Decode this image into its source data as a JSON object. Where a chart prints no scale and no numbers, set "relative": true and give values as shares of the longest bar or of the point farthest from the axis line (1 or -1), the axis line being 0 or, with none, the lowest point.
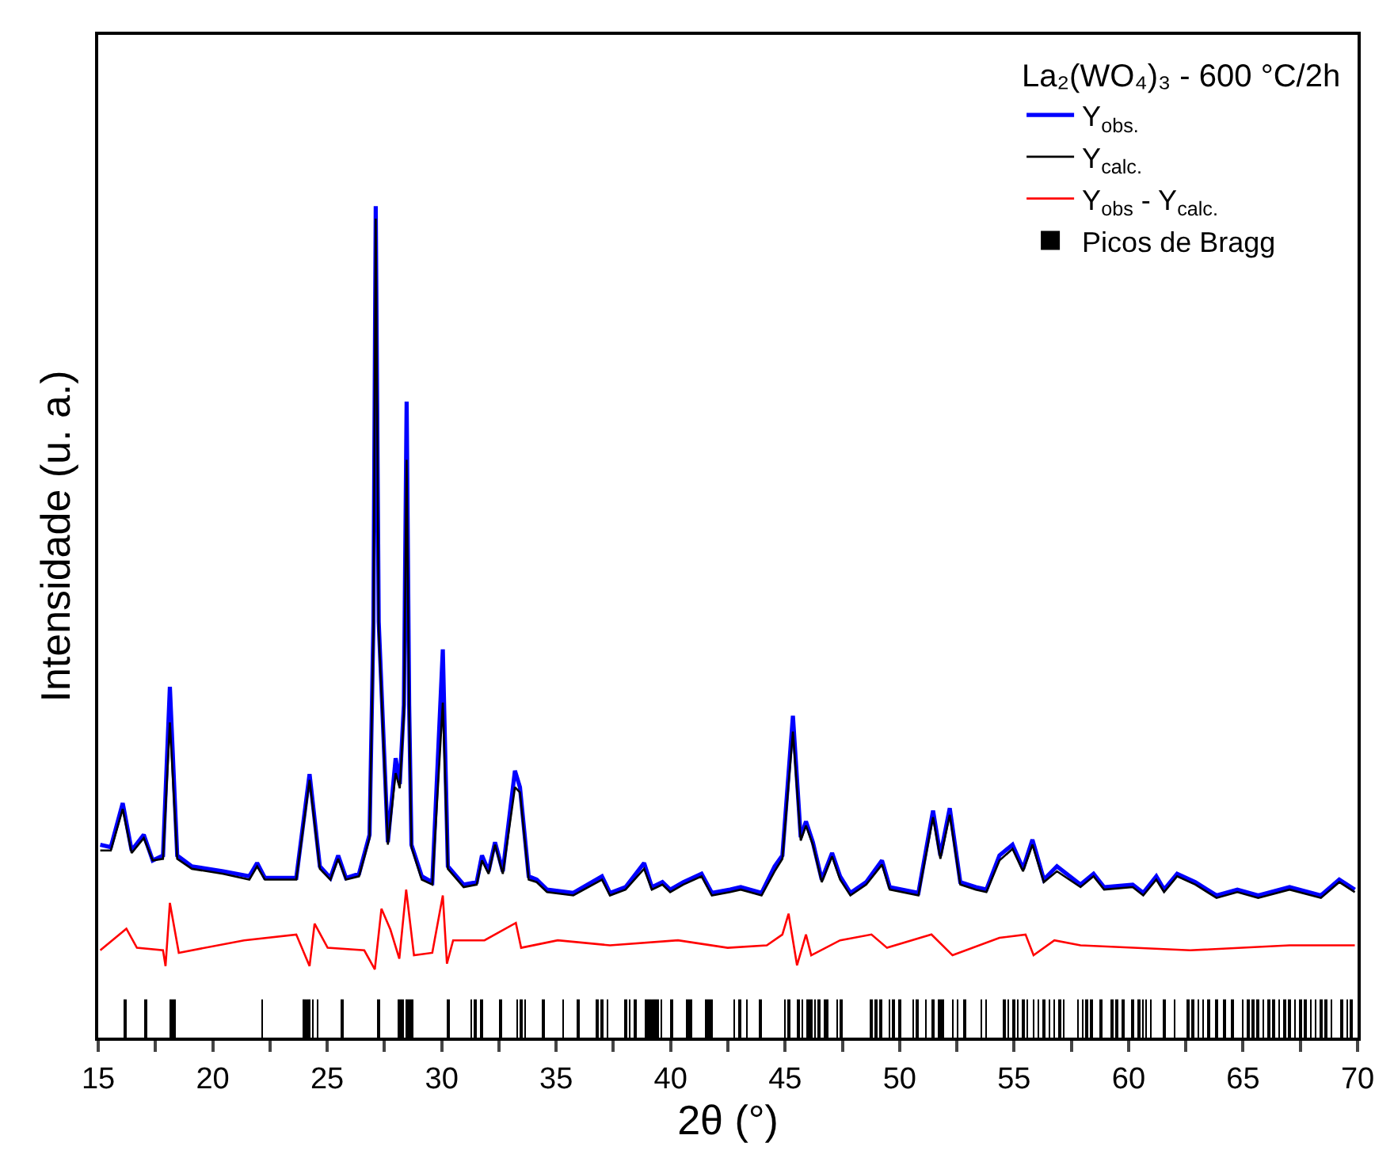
{
  "chart_data": {
    "type": "line",
    "relative": true,
    "xlabel": "2θ (°)",
    "ylabel": "Intensidade (u. a.)",
    "legend_title": "La₂(WO₄)₃ - 600 °C/2h",
    "legend": "top right",
    "tick_labels": "x",
    "xlim": [
      15,
      70
    ],
    "xticks": [
      15,
      {
        "value": 17.5,
        "label": null
      },
      20,
      {
        "value": 22.5,
        "label": null
      },
      25,
      {
        "value": 27.5,
        "label": null
      },
      30,
      {
        "value": 32.5,
        "label": null
      },
      35,
      {
        "value": 37.5,
        "label": null
      },
      40,
      {
        "value": 42.5,
        "label": null
      },
      45,
      {
        "value": 47.5,
        "label": null
      },
      50,
      {
        "value": 52.5,
        "label": null
      },
      55,
      {
        "value": 57.5,
        "label": null
      },
      60,
      {
        "value": 62.5,
        "label": null
      },
      65,
      {
        "value": 67.5,
        "label": null
      },
      70
    ],
    "series": [
      {
        "name": "Y$_{obs.}$",
        "color": "#0000ff",
        "x": [
          15.09,
          15.55,
          16.07,
          16.46,
          16.99,
          17.38,
          17.83,
          18.13,
          18.45,
          19.09,
          20.46,
          21.6,
          21.94,
          22.28,
          23.65,
          24.23,
          24.68,
          25.14,
          25.48,
          25.82,
          26.39,
          26.85,
          27.02,
          27.12,
          27.25,
          27.65,
          27.99,
          28.17,
          28.35,
          28.47,
          28.58,
          28.68,
          29.13,
          29.59,
          30.05,
          30.27,
          30.96,
          31.53,
          31.76,
          32.05,
          32.33,
          32.67,
          33.2,
          33.42,
          33.8,
          34.15,
          34.6,
          35.75,
          37.0,
          37.35,
          38.03,
          38.84,
          39.18,
          39.64,
          39.98,
          40.55,
          41.35,
          41.8,
          42.6,
          43.06,
          43.97,
          44.54,
          44.88,
          45.34,
          45.68,
          45.91,
          46.21,
          46.6,
          47.05,
          47.4,
          47.85,
          48.54,
          49.23,
          49.57,
          50.82,
          51.46,
          51.78,
          52.19,
          52.65,
          53.33,
          53.79,
          54.36,
          54.93,
          55.39,
          55.8,
          56.3,
          56.87,
          57.9,
          58.47,
          58.93,
          60.18,
          60.64,
          61.21,
          61.55,
          62.12,
          62.92,
          63.84,
          64.75,
          65.66,
          67.03,
          68.4,
          69.2,
          69.88
        ],
        "values": [
          0.232,
          0.229,
          0.282,
          0.225,
          0.244,
          0.213,
          0.219,
          0.422,
          0.219,
          0.206,
          0.2,
          0.194,
          0.21,
          0.192,
          0.192,
          0.317,
          0.206,
          0.192,
          0.219,
          0.192,
          0.197,
          0.244,
          0.5,
          1.0,
          0.5,
          0.235,
          0.336,
          0.305,
          0.4,
          0.765,
          0.4,
          0.232,
          0.194,
          0.187,
          0.467,
          0.206,
          0.184,
          0.187,
          0.219,
          0.2,
          0.235,
          0.2,
          0.321,
          0.301,
          0.194,
          0.19,
          0.178,
          0.174,
          0.194,
          0.174,
          0.181,
          0.21,
          0.181,
          0.187,
          0.178,
          0.187,
          0.197,
          0.174,
          0.178,
          0.181,
          0.174,
          0.206,
          0.219,
          0.387,
          0.241,
          0.26,
          0.235,
          0.19,
          0.222,
          0.194,
          0.174,
          0.187,
          0.213,
          0.181,
          0.174,
          0.273,
          0.219,
          0.276,
          0.187,
          0.181,
          0.178,
          0.219,
          0.232,
          0.203,
          0.238,
          0.19,
          0.206,
          0.184,
          0.197,
          0.181,
          0.184,
          0.174,
          0.194,
          0.178,
          0.197,
          0.187,
          0.171,
          0.178,
          0.171,
          0.181,
          0.171,
          0.19,
          0.178
        ]
      },
      {
        "name": "Y$_{calc.}$",
        "color": "#000000",
        "x": [
          15.09,
          15.55,
          16.07,
          16.46,
          16.99,
          17.38,
          17.83,
          18.13,
          18.45,
          19.09,
          20.46,
          21.6,
          21.94,
          22.28,
          23.65,
          24.23,
          24.68,
          25.14,
          25.48,
          25.82,
          26.39,
          26.85,
          27.02,
          27.12,
          27.25,
          27.65,
          27.99,
          28.17,
          28.35,
          28.47,
          28.58,
          28.68,
          29.13,
          29.59,
          30.05,
          30.27,
          30.96,
          31.53,
          31.76,
          32.05,
          32.33,
          32.67,
          33.2,
          33.42,
          33.8,
          34.15,
          34.6,
          35.75,
          37.0,
          37.35,
          38.03,
          38.84,
          39.18,
          39.64,
          39.98,
          40.55,
          41.35,
          41.8,
          42.6,
          43.06,
          43.97,
          44.54,
          44.88,
          45.34,
          45.68,
          45.91,
          46.21,
          46.6,
          47.05,
          47.4,
          47.85,
          48.54,
          49.23,
          49.57,
          50.82,
          51.46,
          51.78,
          52.19,
          52.65,
          53.33,
          53.79,
          54.36,
          54.93,
          55.39,
          55.8,
          56.3,
          56.87,
          57.9,
          58.47,
          58.93,
          60.18,
          60.64,
          61.21,
          61.55,
          62.12,
          62.92,
          63.84,
          64.75,
          65.66,
          67.03,
          68.4,
          69.2,
          69.88
        ],
        "values": [
          0.225,
          0.225,
          0.275,
          0.222,
          0.24,
          0.213,
          0.215,
          0.379,
          0.215,
          0.203,
          0.197,
          0.19,
          0.206,
          0.19,
          0.19,
          0.31,
          0.203,
          0.19,
          0.215,
          0.19,
          0.194,
          0.24,
          0.49,
          0.985,
          0.49,
          0.232,
          0.318,
          0.3,
          0.39,
          0.695,
          0.39,
          0.229,
          0.19,
          0.184,
          0.403,
          0.203,
          0.181,
          0.184,
          0.213,
          0.197,
          0.232,
          0.197,
          0.301,
          0.295,
          0.19,
          0.187,
          0.175,
          0.171,
          0.19,
          0.171,
          0.178,
          0.203,
          0.178,
          0.184,
          0.175,
          0.184,
          0.194,
          0.171,
          0.175,
          0.178,
          0.171,
          0.2,
          0.215,
          0.368,
          0.237,
          0.255,
          0.232,
          0.187,
          0.218,
          0.19,
          0.171,
          0.184,
          0.208,
          0.178,
          0.171,
          0.265,
          0.215,
          0.268,
          0.184,
          0.178,
          0.175,
          0.213,
          0.227,
          0.2,
          0.232,
          0.187,
          0.2,
          0.181,
          0.194,
          0.178,
          0.181,
          0.171,
          0.19,
          0.175,
          0.194,
          0.184,
          0.168,
          0.175,
          0.168,
          0.178,
          0.168,
          0.187,
          0.175
        ]
      },
      {
        "name": "Y$_{obs}$ - Y$_{calc.}$",
        "color": "#ff0000",
        "x": [
          15.09,
          16.23,
          16.69,
          17.83,
          17.94,
          18.13,
          18.52,
          21.37,
          23.65,
          24.23,
          24.45,
          25.02,
          26.62,
          27.08,
          27.37,
          27.76,
          28.15,
          28.45,
          28.79,
          29.59,
          30.05,
          30.23,
          30.5,
          31.87,
          33.24,
          33.47,
          35.07,
          37.35,
          40.32,
          42.49,
          44.2,
          44.88,
          45.15,
          45.52,
          45.91,
          46.14,
          47.4,
          48.77,
          49.45,
          51.39,
          52.31,
          54.36,
          55.5,
          55.85,
          56.76,
          57.9,
          62.69,
          67.03,
          69.88
        ],
        "values": [
          0.105,
          0.131,
          0.108,
          0.105,
          0.086,
          0.162,
          0.102,
          0.117,
          0.124,
          0.086,
          0.137,
          0.108,
          0.105,
          0.082,
          0.155,
          0.13,
          0.095,
          0.178,
          0.099,
          0.102,
          0.171,
          0.089,
          0.117,
          0.117,
          0.138,
          0.108,
          0.117,
          0.111,
          0.117,
          0.108,
          0.111,
          0.124,
          0.149,
          0.087,
          0.124,
          0.099,
          0.117,
          0.124,
          0.108,
          0.124,
          0.099,
          0.12,
          0.124,
          0.099,
          0.117,
          0.111,
          0.105,
          0.111,
          0.111
        ]
      },
      {
        "name": "Picos de Bragg",
        "type": "bar",
        "color": "#000000",
        "x": [
          16.19,
          17.08,
          18.17,
          18.31,
          22.17,
          24.0,
          24.11,
          24.22,
          24.38,
          24.57,
          25.64,
          27.26,
          28.1,
          28.22,
          28.33,
          28.49,
          28.63,
          28.74,
          30.27,
          31.3,
          31.46,
          31.76,
          32.56,
          33.29,
          33.47,
          33.65,
          34.43,
          35.3,
          35.98,
          36.78,
          37.01,
          37.24,
          38.04,
          38.22,
          38.45,
          38.95,
          39.06,
          39.18,
          39.29,
          39.41,
          39.59,
          40.05,
          40.73,
          40.89,
          41.58,
          41.69,
          41.8,
          42.79,
          43.01,
          43.33,
          43.93,
          45.0,
          45.16,
          45.57,
          45.75,
          45.98,
          46.14,
          46.3,
          46.48,
          46.71,
          46.83,
          47.28,
          47.44,
          48.77,
          48.95,
          49.18,
          49.57,
          49.73,
          50.02,
          50.59,
          50.78,
          51.16,
          51.46,
          51.73,
          51.89,
          52.31,
          52.53,
          52.83,
          53.56,
          53.79,
          54.59,
          54.75,
          54.98,
          55.16,
          55.39,
          55.57,
          55.84,
          56.07,
          56.3,
          56.53,
          56.76,
          56.99,
          57.17,
          57.79,
          58.01,
          58.17,
          58.36,
          58.81,
          59.27,
          59.5,
          59.77,
          60.18,
          60.46,
          60.64,
          60.75,
          60.98,
          61.55,
          62.01,
          62.58,
          62.81,
          63.04,
          63.26,
          63.49,
          63.84,
          64.18,
          64.52,
          64.98,
          65.21,
          65.43,
          65.66,
          65.89,
          66.12,
          66.35,
          66.58,
          66.8,
          67.03,
          67.26,
          67.49,
          67.72,
          67.95,
          68.17,
          68.4,
          68.63,
          68.86,
          69.32,
          69.54,
          69.73
        ],
        "values": [
          0.046,
          0.046,
          0.046,
          0.046,
          0.046,
          0.046,
          0.046,
          0.046,
          0.046,
          0.046,
          0.046,
          0.046,
          0.046,
          0.046,
          0.046,
          0.046,
          0.046,
          0.046,
          0.046,
          0.046,
          0.046,
          0.046,
          0.046,
          0.046,
          0.046,
          0.046,
          0.046,
          0.046,
          0.046,
          0.046,
          0.046,
          0.046,
          0.046,
          0.046,
          0.046,
          0.046,
          0.046,
          0.046,
          0.046,
          0.046,
          0.046,
          0.046,
          0.046,
          0.046,
          0.046,
          0.046,
          0.046,
          0.046,
          0.046,
          0.046,
          0.046,
          0.046,
          0.046,
          0.046,
          0.046,
          0.046,
          0.046,
          0.046,
          0.046,
          0.046,
          0.046,
          0.046,
          0.046,
          0.046,
          0.046,
          0.046,
          0.046,
          0.046,
          0.046,
          0.046,
          0.046,
          0.046,
          0.046,
          0.046,
          0.046,
          0.046,
          0.046,
          0.046,
          0.046,
          0.046,
          0.046,
          0.046,
          0.046,
          0.046,
          0.046,
          0.046,
          0.046,
          0.046,
          0.046,
          0.046,
          0.046,
          0.046,
          0.046,
          0.046,
          0.046,
          0.046,
          0.046,
          0.046,
          0.046,
          0.046,
          0.046,
          0.046,
          0.046,
          0.046,
          0.046,
          0.046,
          0.046,
          0.046,
          0.046,
          0.046,
          0.046,
          0.046,
          0.046,
          0.046,
          0.046,
          0.046,
          0.046,
          0.046,
          0.046,
          0.046,
          0.046,
          0.046,
          0.046,
          0.046,
          0.046,
          0.046,
          0.046,
          0.046,
          0.046,
          0.046,
          0.046,
          0.046,
          0.046,
          0.046,
          0.046,
          0.046,
          0.046
        ]
      }
    ]
  }
}
